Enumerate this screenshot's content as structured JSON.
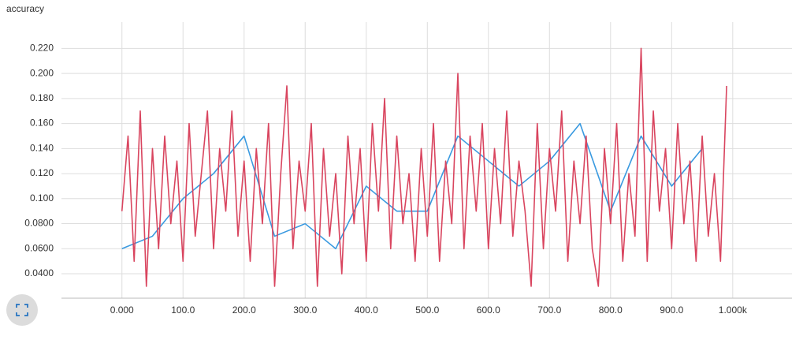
{
  "chart_data": {
    "type": "line",
    "title": "accuracy",
    "xlim": [
      -99,
      1097
    ],
    "ylim": [
      0.0205,
      0.241
    ],
    "xticks": [
      {
        "value": 0,
        "label": "0.000"
      },
      {
        "value": 100,
        "label": "100.0"
      },
      {
        "value": 200,
        "label": "200.0"
      },
      {
        "value": 300,
        "label": "300.0"
      },
      {
        "value": 400,
        "label": "400.0"
      },
      {
        "value": 500,
        "label": "500.0"
      },
      {
        "value": 600,
        "label": "600.0"
      },
      {
        "value": 700,
        "label": "700.0"
      },
      {
        "value": 800,
        "label": "800.0"
      },
      {
        "value": 900,
        "label": "900.0"
      },
      {
        "value": 1000,
        "label": "1.000k"
      }
    ],
    "yticks": [
      {
        "value": 0.04,
        "label": "0.0400"
      },
      {
        "value": 0.06,
        "label": "0.0600"
      },
      {
        "value": 0.08,
        "label": "0.0800"
      },
      {
        "value": 0.1,
        "label": "0.100"
      },
      {
        "value": 0.12,
        "label": "0.120"
      },
      {
        "value": 0.14,
        "label": "0.140"
      },
      {
        "value": 0.16,
        "label": "0.160"
      },
      {
        "value": 0.18,
        "label": "0.180"
      },
      {
        "value": 0.2,
        "label": "0.200"
      },
      {
        "value": 0.22,
        "label": "0.220"
      }
    ],
    "grid": true,
    "series": [
      {
        "color": "#3a9ae0",
        "x": [
          0,
          50,
          100,
          150,
          200,
          250,
          300,
          350,
          400,
          450,
          500,
          550,
          600,
          650,
          700,
          750,
          800,
          850,
          900,
          950
        ],
        "values": [
          0.06,
          0.07,
          0.1,
          0.12,
          0.15,
          0.07,
          0.08,
          0.06,
          0.11,
          0.09,
          0.09,
          0.15,
          0.13,
          0.11,
          0.13,
          0.16,
          0.09,
          0.15,
          0.11,
          0.14
        ]
      },
      {
        "color": "#d9455f",
        "x": [
          0,
          10,
          20,
          30,
          40,
          50,
          60,
          70,
          80,
          90,
          100,
          110,
          120,
          130,
          140,
          150,
          160,
          170,
          180,
          190,
          200,
          210,
          220,
          230,
          240,
          250,
          260,
          270,
          280,
          290,
          300,
          310,
          320,
          330,
          340,
          350,
          360,
          370,
          380,
          390,
          400,
          410,
          420,
          430,
          440,
          450,
          460,
          470,
          480,
          490,
          500,
          510,
          520,
          530,
          540,
          550,
          560,
          570,
          580,
          590,
          600,
          610,
          620,
          630,
          640,
          650,
          660,
          670,
          680,
          690,
          700,
          710,
          720,
          730,
          740,
          750,
          760,
          770,
          780,
          790,
          800,
          810,
          820,
          830,
          840,
          850,
          860,
          870,
          880,
          890,
          900,
          910,
          920,
          930,
          940,
          950,
          960,
          970,
          980,
          990
        ],
        "values": [
          0.09,
          0.15,
          0.05,
          0.17,
          0.03,
          0.14,
          0.06,
          0.15,
          0.08,
          0.13,
          0.05,
          0.16,
          0.07,
          0.12,
          0.17,
          0.06,
          0.14,
          0.09,
          0.17,
          0.07,
          0.13,
          0.05,
          0.14,
          0.08,
          0.16,
          0.03,
          0.12,
          0.19,
          0.06,
          0.13,
          0.09,
          0.16,
          0.03,
          0.14,
          0.07,
          0.12,
          0.04,
          0.15,
          0.08,
          0.14,
          0.05,
          0.16,
          0.09,
          0.18,
          0.06,
          0.15,
          0.08,
          0.12,
          0.05,
          0.14,
          0.07,
          0.16,
          0.05,
          0.13,
          0.08,
          0.2,
          0.06,
          0.15,
          0.09,
          0.16,
          0.06,
          0.14,
          0.08,
          0.17,
          0.07,
          0.13,
          0.09,
          0.03,
          0.16,
          0.06,
          0.14,
          0.09,
          0.17,
          0.05,
          0.13,
          0.08,
          0.15,
          0.06,
          0.03,
          0.14,
          0.08,
          0.16,
          0.05,
          0.12,
          0.07,
          0.22,
          0.05,
          0.17,
          0.09,
          0.14,
          0.06,
          0.16,
          0.08,
          0.13,
          0.05,
          0.15,
          0.07,
          0.12,
          0.05,
          0.19
        ]
      }
    ]
  }
}
